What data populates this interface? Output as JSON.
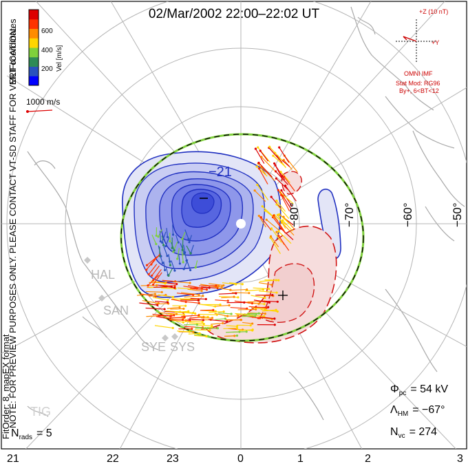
{
  "title": "02/Mar/2002 22:00–22:02 UT",
  "left_labels": {
    "note": "NOTE: FOR PREVIEW PURPOSES ONLY. PLEASE CONTACT VT-SD STAFF FOR VERIFICATION.",
    "fit": "FitOrder: 8, mapEX format",
    "coords": "MLT coordinates"
  },
  "colorbar": {
    "title": "Vel [m/s]",
    "ticks": [
      "600",
      "400",
      "200"
    ],
    "colors": [
      "#0000ff",
      "#2a52be",
      "#2e8b57",
      "#7fd13b",
      "#ffd500",
      "#ff8c00",
      "#ff3300",
      "#dd0000"
    ]
  },
  "reference_vector": {
    "label": "1000 m/s"
  },
  "imf": {
    "z_label": "+Z (10 nT)",
    "y_label": "+Y",
    "source": "OMNI IMF",
    "model": "Stat Mod: RG96",
    "condition": "By+, 6<BT<12"
  },
  "stations": [
    "HAL",
    "SAN",
    "SYE",
    "SYS",
    "TIG"
  ],
  "mlt_labels": [
    "21",
    "22",
    "23",
    "0",
    "1",
    "2",
    "3"
  ],
  "lat_labels": [
    "−80°",
    "−70°",
    "−60°",
    "−50°"
  ],
  "potential_label": "−21",
  "stats": {
    "phi_label": "Φ",
    "phi_sub": "pc",
    "phi_value": "= 54 kV",
    "lambda_label": "Λ",
    "lambda_sub": "HM",
    "lambda_value": "= −67°",
    "nvc_label": "N",
    "nvc_sub": "vc",
    "nvc_value": "= 274",
    "nrads_label": "N",
    "nrads_sub": "rads",
    "nrads_value": "= 5"
  },
  "chart_data": {
    "type": "polar-convection-map",
    "coordinate_system": "MLT",
    "mlt_ticks": [
      21,
      22,
      23,
      0,
      1,
      2,
      3
    ],
    "lat_rings": [
      -80,
      -70,
      -60,
      -50
    ],
    "hm_boundary_lat": -67,
    "cross_polar_cap_potential_kV": 54,
    "vector_count": 274,
    "radar_count": 5,
    "potential_minimum_kV": -21,
    "velocity_scale": {
      "min": 0,
      "max": 800,
      "units": "m/s"
    },
    "colors": {
      "negative": "#3344dd",
      "positive": "#dd2222",
      "boundary": "#7fd13b"
    }
  }
}
